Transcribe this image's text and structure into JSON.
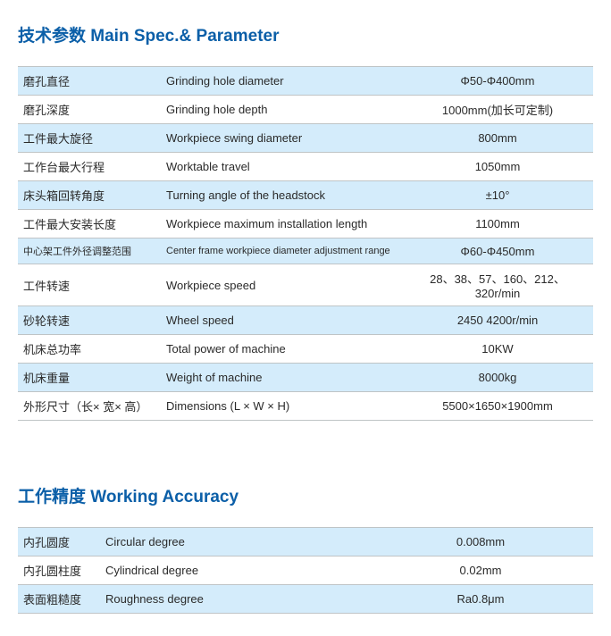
{
  "spec_heading": "技术参数 Main Spec.& Parameter",
  "spec_rows": [
    {
      "cn": "磨孔直径",
      "en": "Grinding hole diameter",
      "val": "Φ50-Φ400mm",
      "alt": true
    },
    {
      "cn": "磨孔深度",
      "en": "Grinding hole depth",
      "val": "1000mm(加长可定制)",
      "alt": false
    },
    {
      "cn": "工件最大旋径",
      "en": "Workpiece swing diameter",
      "val": "800mm",
      "alt": true
    },
    {
      "cn": "工作台最大行程",
      "en": "Worktable travel",
      "val": "1050mm",
      "alt": false
    },
    {
      "cn": "床头箱回转角度",
      "en": "Turning angle of the headstock",
      "val": "±10°",
      "alt": true
    },
    {
      "cn": "工件最大安装长度",
      "en": "Workpiece maximum installation length",
      "val": "1100mm",
      "alt": false
    },
    {
      "cn": "中心架工件外径调整范围",
      "en": "Center frame workpiece diameter adjustment range",
      "val": "Φ60-Φ450mm",
      "alt": true,
      "small": true
    },
    {
      "cn": "工件转速",
      "en": "Workpiece speed",
      "val": "28、38、57、160、212、320r/min",
      "alt": false
    },
    {
      "cn": "砂轮转速",
      "en": "Wheel speed",
      "val": "2450 4200r/min",
      "alt": true
    },
    {
      "cn": "机床总功率",
      "en": "Total power of machine",
      "val": "10KW",
      "alt": false
    },
    {
      "cn": "机床重量",
      "en": "Weight of machine",
      "val": "8000kg",
      "alt": true
    },
    {
      "cn": "外形尺寸（长× 宽× 高）",
      "en": "Dimensions (L × W × H)",
      "val": "5500×1650×1900mm",
      "alt": false
    }
  ],
  "acc_heading": "工作精度 Working Accuracy",
  "acc_rows": [
    {
      "cn": "内孔圆度",
      "en": "Circular degree",
      "val": "0.008mm",
      "alt": true
    },
    {
      "cn": "内孔圆柱度",
      "en": "Cylindrical degree",
      "val": "0.02mm",
      "alt": false
    },
    {
      "cn": "表面粗糙度",
      "en": "Roughness degree",
      "val": "Ra0.8μm",
      "alt": true
    }
  ],
  "colors": {
    "heading": "#0b5fa8",
    "row_alt_bg": "#d4ecfb",
    "row_norm_bg": "#ffffff",
    "border": "#bfc4c6",
    "text": "#2a2a2a"
  }
}
